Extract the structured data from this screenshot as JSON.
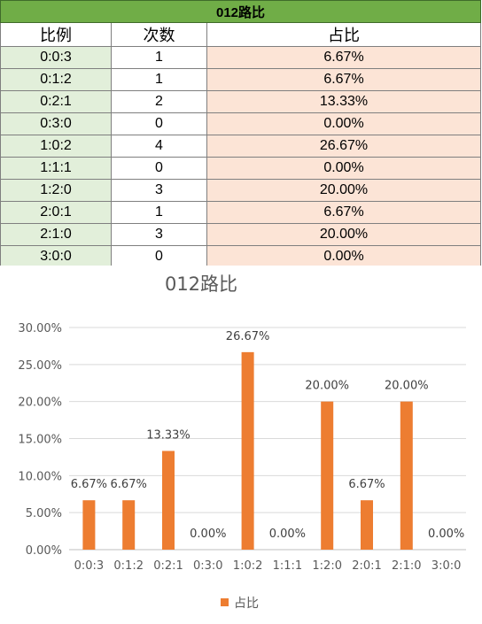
{
  "table": {
    "title": "012路比",
    "headers": [
      "比例",
      "次数",
      "占比"
    ],
    "rows": [
      {
        "ratio": "0:0:3",
        "count": "1",
        "pct": "6.67%"
      },
      {
        "ratio": "0:1:2",
        "count": "1",
        "pct": "6.67%"
      },
      {
        "ratio": "0:2:1",
        "count": "2",
        "pct": "13.33%"
      },
      {
        "ratio": "0:3:0",
        "count": "0",
        "pct": "0.00%"
      },
      {
        "ratio": "1:0:2",
        "count": "4",
        "pct": "26.67%"
      },
      {
        "ratio": "1:1:1",
        "count": "0",
        "pct": "0.00%"
      },
      {
        "ratio": "1:2:0",
        "count": "3",
        "pct": "20.00%"
      },
      {
        "ratio": "2:0:1",
        "count": "1",
        "pct": "6.67%"
      },
      {
        "ratio": "2:1:0",
        "count": "3",
        "pct": "20.00%"
      },
      {
        "ratio": "3:0:0",
        "count": "0",
        "pct": "0.00%"
      }
    ],
    "colors": {
      "title_bg": "#70ad47",
      "ratio_bg": "#e2efda",
      "pct_bg": "#fce4d6"
    }
  },
  "chart_data": {
    "type": "bar",
    "title": "012路比",
    "categories": [
      "0:0:3",
      "0:1:2",
      "0:2:1",
      "0:3:0",
      "1:0:2",
      "1:1:1",
      "1:2:0",
      "2:0:1",
      "2:1:0",
      "3:0:0"
    ],
    "series": [
      {
        "name": "占比",
        "values": [
          6.67,
          6.67,
          13.33,
          0.0,
          26.67,
          0.0,
          20.0,
          6.67,
          20.0,
          0.0
        ],
        "color": "#ed7d31"
      }
    ],
    "data_labels": [
      "6.67%",
      "6.67%",
      "13.33%",
      "0.00%",
      "26.67%",
      "0.00%",
      "20.00%",
      "6.67%",
      "20.00%",
      "0.00%"
    ],
    "yticks": [
      "0.00%",
      "5.00%",
      "10.00%",
      "15.00%",
      "20.00%",
      "25.00%",
      "30.00%"
    ],
    "ylim": [
      0,
      30
    ],
    "grid": true,
    "legend": "bottom"
  }
}
